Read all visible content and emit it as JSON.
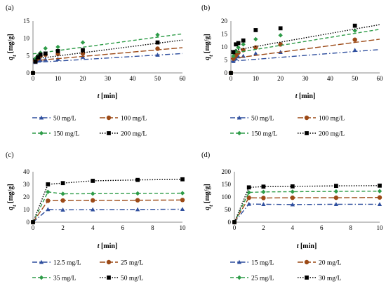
{
  "chart_data": [
    {
      "type": "line",
      "panel_label": "(a)",
      "xlabel": "t [min]",
      "ylabel": "q_t [mg/g]",
      "xlim": [
        0,
        60
      ],
      "ylim": [
        0,
        15
      ],
      "xticks": [
        0,
        10,
        20,
        30,
        40,
        50,
        60
      ],
      "yticks": [
        0,
        5,
        10,
        15
      ],
      "grid": false,
      "legend_position": "bottom",
      "series": [
        {
          "name": "50 mg/L",
          "color": "#2f4f9e",
          "marker": "triangle",
          "dash": "dash-dot",
          "x": [
            0,
            1,
            2,
            3,
            5,
            10,
            20,
            50
          ],
          "y": [
            0,
            3.1,
            3.5,
            3.7,
            3.9,
            4.0,
            4.6,
            5.2
          ],
          "trend": {
            "x": [
              0,
              60
            ],
            "y": [
              3.0,
              5.6
            ]
          }
        },
        {
          "name": "100 mg/L",
          "color": "#9c4a17",
          "marker": "circle",
          "dash": "long-dash",
          "x": [
            0,
            1,
            2,
            3,
            5,
            10,
            20,
            50
          ],
          "y": [
            0,
            3.3,
            4.2,
            4.9,
            5.3,
            5.5,
            5.6,
            7.0
          ],
          "trend": {
            "x": [
              0,
              60
            ],
            "y": [
              3.5,
              7.3
            ]
          }
        },
        {
          "name": "150 mg/L",
          "color": "#2e9c48",
          "marker": "diamond",
          "dash": "dash",
          "x": [
            0,
            1,
            2,
            3,
            5,
            10,
            20,
            50
          ],
          "y": [
            0,
            4.2,
            5.0,
            5.8,
            7.1,
            7.5,
            8.8,
            11.0
          ],
          "trend": {
            "x": [
              0,
              60
            ],
            "y": [
              5.5,
              11.3
            ]
          }
        },
        {
          "name": "200 mg/L",
          "color": "#000000",
          "marker": "square",
          "dash": "dot",
          "x": [
            0,
            1,
            2,
            3,
            5,
            10,
            20,
            50
          ],
          "y": [
            0,
            3.3,
            4.5,
            5.3,
            5.6,
            6.3,
            6.6,
            8.8
          ],
          "trend": {
            "x": [
              0,
              60
            ],
            "y": [
              4.0,
              9.5
            ]
          }
        }
      ]
    },
    {
      "type": "line",
      "panel_label": "(b)",
      "xlabel": "t [min]",
      "ylabel": "q_t [mg/g]",
      "xlim": [
        0,
        60
      ],
      "ylim": [
        0,
        20
      ],
      "xticks": [
        0,
        10,
        20,
        30,
        40,
        50,
        60
      ],
      "yticks": [
        0,
        5,
        10,
        15,
        20
      ],
      "grid": false,
      "legend_position": "bottom",
      "series": [
        {
          "name": "50 mg/L",
          "color": "#2f4f9e",
          "marker": "triangle",
          "dash": "dash-dot",
          "x": [
            0,
            1,
            2,
            3,
            5,
            10,
            20,
            50
          ],
          "y": [
            0,
            4.5,
            5.5,
            6.3,
            6.5,
            7.5,
            8.0,
            8.8
          ],
          "trend": {
            "x": [
              0,
              60
            ],
            "y": [
              4.5,
              9.0
            ]
          }
        },
        {
          "name": "100 mg/L",
          "color": "#9c4a17",
          "marker": "circle",
          "dash": "long-dash",
          "x": [
            0,
            1,
            2,
            3,
            5,
            10,
            20,
            50
          ],
          "y": [
            0,
            5.5,
            6.8,
            7.8,
            8.8,
            9.8,
            11.0,
            12.8
          ],
          "trend": {
            "x": [
              0,
              60
            ],
            "y": [
              5.5,
              13.0
            ]
          }
        },
        {
          "name": "150 mg/L",
          "color": "#2e9c48",
          "marker": "diamond",
          "dash": "dash",
          "x": [
            0,
            1,
            2,
            3,
            5,
            10,
            20,
            50
          ],
          "y": [
            0,
            6.5,
            8.5,
            9.8,
            11.0,
            13.0,
            14.5,
            16.3
          ],
          "trend": {
            "x": [
              0,
              60
            ],
            "y": [
              7.5,
              16.8
            ]
          }
        },
        {
          "name": "200 mg/L",
          "color": "#000000",
          "marker": "square",
          "dash": "dot",
          "x": [
            0,
            1,
            2,
            3,
            5,
            10,
            20,
            50
          ],
          "y": [
            0,
            8.0,
            11.0,
            11.5,
            12.5,
            16.5,
            17.2,
            18.2
          ],
          "trend": {
            "x": [
              0,
              60
            ],
            "y": [
              8.5,
              18.6
            ]
          }
        }
      ]
    },
    {
      "type": "line",
      "panel_label": "(c)",
      "xlabel": "t [min]",
      "ylabel": "q_t [mg/g]",
      "xlim": [
        0,
        10
      ],
      "ylim": [
        0,
        40
      ],
      "xticks": [
        0,
        2,
        4,
        6,
        8,
        10
      ],
      "yticks": [
        0,
        10,
        20,
        30,
        40
      ],
      "grid": false,
      "legend_position": "bottom",
      "series": [
        {
          "name": "12.5 mg/L",
          "color": "#2f4f9e",
          "marker": "triangle",
          "dash": "dash-dot",
          "x": [
            0,
            1,
            2,
            4,
            7,
            10
          ],
          "y": [
            0,
            10.2,
            9.8,
            10.0,
            10.1,
            10.3
          ]
        },
        {
          "name": "25 mg/L",
          "color": "#9c4a17",
          "marker": "circle",
          "dash": "long-dash",
          "x": [
            0,
            1,
            2,
            4,
            7,
            10
          ],
          "y": [
            0,
            17.0,
            17.2,
            17.3,
            17.4,
            17.6
          ]
        },
        {
          "name": "35 mg/L",
          "color": "#2e9c48",
          "marker": "diamond",
          "dash": "dash",
          "x": [
            0,
            1,
            2,
            4,
            7,
            10
          ],
          "y": [
            0,
            24.0,
            22.5,
            22.6,
            22.8,
            23.0
          ]
        },
        {
          "name": "50 mg/L",
          "color": "#000000",
          "marker": "square",
          "dash": "dot",
          "x": [
            0,
            1,
            2,
            4,
            7,
            10
          ],
          "y": [
            0,
            30.0,
            31.0,
            32.8,
            33.5,
            34.0
          ]
        }
      ]
    },
    {
      "type": "line",
      "panel_label": "(d)",
      "xlabel": "t [min]",
      "ylabel": "q_t [mg/g]",
      "xlim": [
        0,
        10
      ],
      "ylim": [
        0,
        200
      ],
      "xticks": [
        0,
        2,
        4,
        6,
        8,
        10
      ],
      "yticks": [
        0,
        50,
        100,
        150,
        200
      ],
      "grid": false,
      "legend_position": "bottom",
      "series": [
        {
          "name": "15 mg/L",
          "color": "#2f4f9e",
          "marker": "triangle",
          "dash": "dash-dot",
          "x": [
            0,
            1,
            2,
            4,
            7,
            10
          ],
          "y": [
            0,
            72,
            71,
            70,
            71,
            71
          ]
        },
        {
          "name": "20 mg/L",
          "color": "#9c4a17",
          "marker": "circle",
          "dash": "long-dash",
          "x": [
            0,
            1,
            2,
            4,
            7,
            10
          ],
          "y": [
            0,
            97,
            96,
            97,
            97,
            98
          ]
        },
        {
          "name": "25 mg/L",
          "color": "#2e9c48",
          "marker": "diamond",
          "dash": "dash",
          "x": [
            0,
            1,
            2,
            4,
            7,
            10
          ],
          "y": [
            0,
            118,
            120,
            121,
            122,
            123
          ]
        },
        {
          "name": "30 mg/L",
          "color": "#000000",
          "marker": "square",
          "dash": "dot",
          "x": [
            0,
            1,
            2,
            4,
            7,
            10
          ],
          "y": [
            0,
            138,
            141,
            142,
            144,
            145
          ]
        }
      ]
    }
  ]
}
